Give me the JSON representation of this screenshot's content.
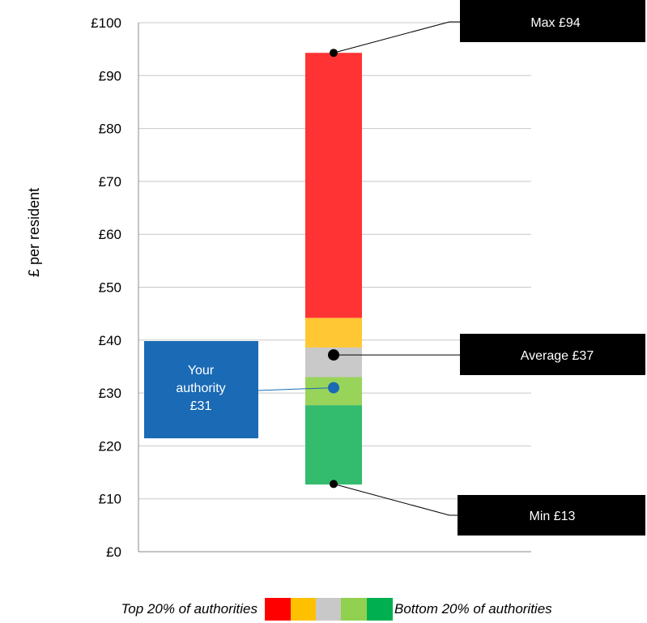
{
  "chart_data": {
    "type": "bar",
    "y_axis": {
      "label": "£ per resident",
      "ylim": [
        0,
        100
      ],
      "ticks": [
        0,
        10,
        20,
        30,
        40,
        50,
        60,
        70,
        80,
        90,
        100
      ],
      "tick_labels": [
        "£0",
        "£10",
        "£20",
        "£30",
        "£40",
        "£50",
        "£60",
        "£70",
        "£80",
        "£90",
        "£100"
      ]
    },
    "grid": true,
    "bands": [
      {
        "from": 12.7,
        "to": 27.7,
        "color": "#33bb6e"
      },
      {
        "from": 27.7,
        "to": 33.0,
        "color": "#99d45a"
      },
      {
        "from": 33.0,
        "to": 38.6,
        "color": "#c9c9c9"
      },
      {
        "from": 38.6,
        "to": 44.2,
        "color": "#ffc733"
      },
      {
        "from": 44.2,
        "to": 94.3,
        "color": "#ff3333"
      }
    ],
    "markers": {
      "max": {
        "value": 94.3,
        "label": "Max £94"
      },
      "average": {
        "value": 37.2,
        "label": "Average £37"
      },
      "min": {
        "value": 12.8,
        "label": "Min £13"
      },
      "your_authority": {
        "value": 31,
        "label_lines": [
          "Your",
          "authority",
          "£31"
        ],
        "color": "#1a6ab5"
      }
    },
    "legend": {
      "left_text": "Top 20% of authorities",
      "right_text": "Bottom 20% of authorities",
      "swatches": [
        "#ff0000",
        "#ffc000",
        "#c8c8c8",
        "#92d050",
        "#00b050"
      ]
    }
  }
}
